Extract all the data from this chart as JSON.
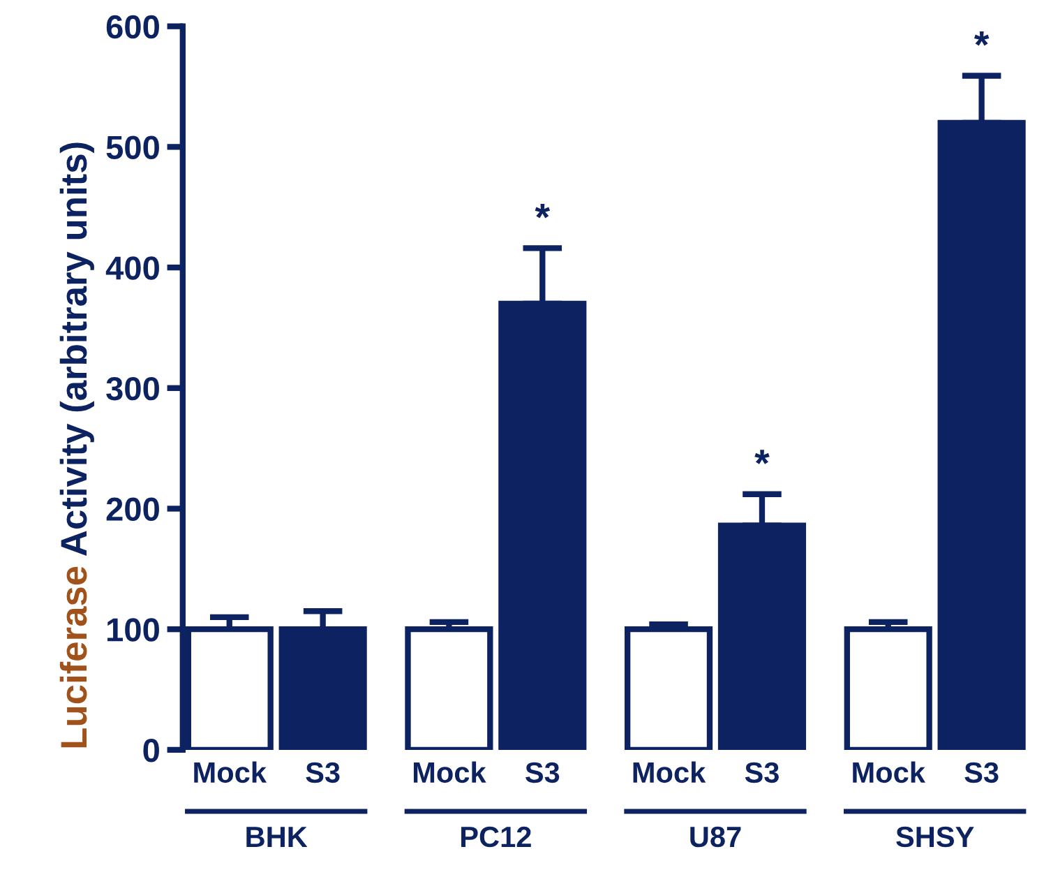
{
  "chart_data": {
    "type": "bar",
    "ylabel": "Luciferase Activity (arbitrary units)",
    "categories": [
      "Mock",
      "S3",
      "Mock",
      "S3",
      "Mock",
      "S3",
      "Mock",
      "S3"
    ],
    "values": [
      100,
      100,
      100,
      370,
      100,
      186,
      100,
      520
    ],
    "errors": [
      10,
      15,
      6,
      46,
      4,
      26,
      6,
      39
    ],
    "colors": [
      "#ffffff",
      "#0d2260",
      "#ffffff",
      "#0d2260",
      "#ffffff",
      "#0d2260",
      "#ffffff",
      "#0d2260"
    ],
    "value_labels": [
      null,
      null,
      null,
      "*",
      null,
      "*",
      null,
      "*"
    ],
    "annotations": [
      "BHK",
      "PC12",
      "U87",
      "SHSY"
    ],
    "ylim": [
      0,
      600
    ],
    "yticks": [
      0,
      100,
      200,
      300,
      400,
      500,
      600
    ],
    "grid": false,
    "legend": false
  }
}
